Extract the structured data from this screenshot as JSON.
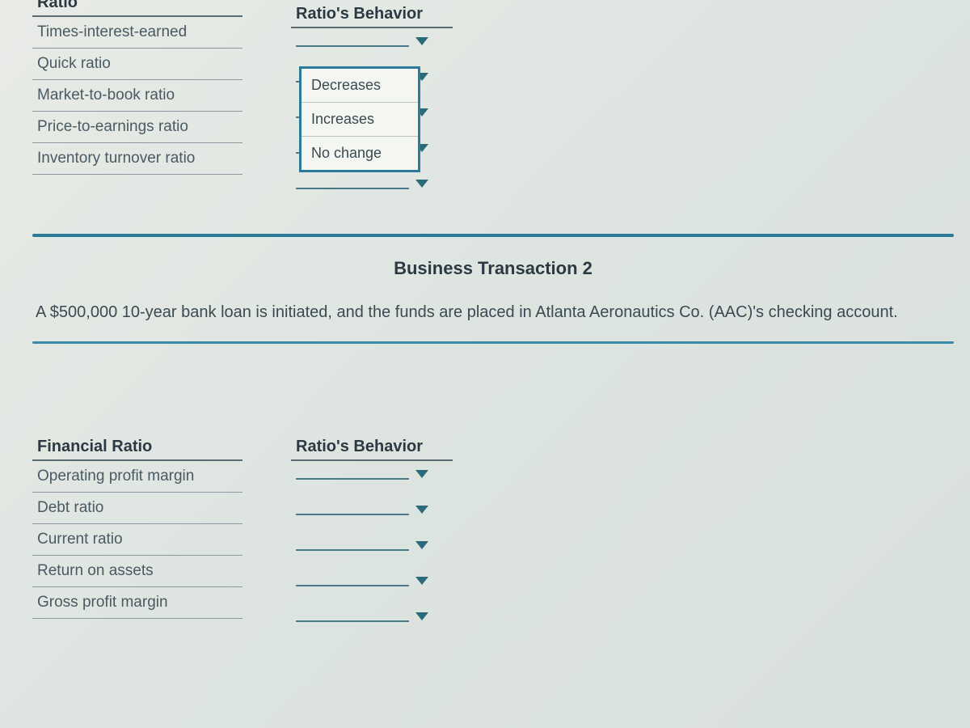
{
  "colors": {
    "accent": "#2a7a9a",
    "rule": "#3a8aaa",
    "text": "#3a4a52",
    "header_text": "#2b3a42",
    "bg_gradient_from": "#e8ebe6",
    "bg_gradient_to": "#d8e0dd"
  },
  "section1": {
    "left_header": "Ratio",
    "right_header": "Ratio's Behavior",
    "ratios": [
      "Times-interest-earned",
      "Quick ratio",
      "Market-to-book ratio",
      "Price-to-earnings ratio",
      "Inventory turnover ratio"
    ],
    "dropdown_options": [
      "Decreases",
      "Increases",
      "No change"
    ]
  },
  "section2": {
    "title": "Business Transaction 2",
    "body": "A $500,000 10-year bank loan is initiated, and the funds are placed in Atlanta Aeronautics Co. (AAC)'s checking account."
  },
  "section3": {
    "left_header": "Financial Ratio",
    "right_header": "Ratio's Behavior",
    "ratios": [
      "Operating profit margin",
      "Debt ratio",
      "Current ratio",
      "Return on assets",
      "Gross profit margin"
    ]
  }
}
